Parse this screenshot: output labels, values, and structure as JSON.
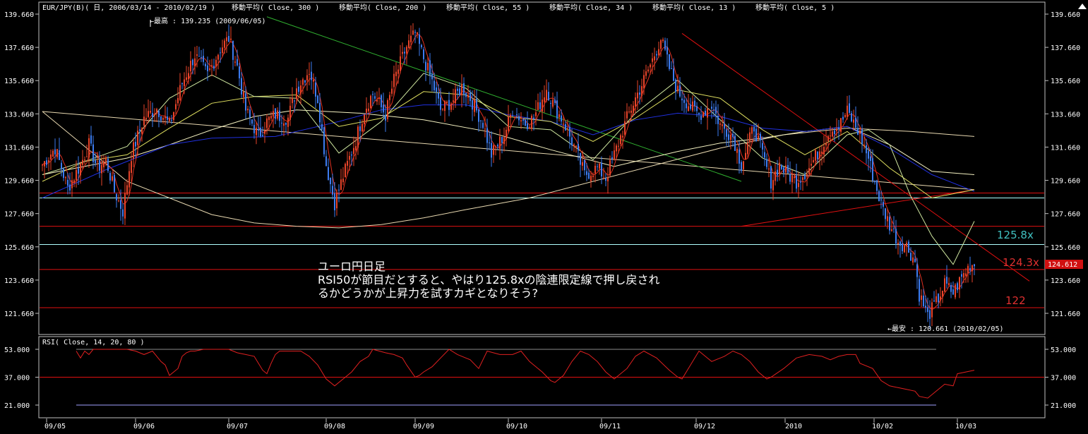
{
  "header": {
    "symbol": "EUR/JPY(B)( 日, 2006/03/14 - 2010/02/19 )",
    "indicators": [
      "移動平均( Close, 300 )",
      "移動平均( Close, 200 )",
      "移動平均( Close, 55 )",
      "移動平均( Close, 34 )",
      "移動平均( Close, 13 )",
      "移動平均( Close, 5 )"
    ],
    "rsi_label": "RSI( Close, 14, 20, 80 )"
  },
  "colors": {
    "background": "#000000",
    "frame": "#bfbfbf",
    "up_candle": "#e8442a",
    "down_candle": "#3d7cf0",
    "ma300": "#e8d8b0",
    "ma200": "#f3f0c0",
    "ma55": "#2030e0",
    "ma34": "#e0e060",
    "ma13": "#d0e8a0",
    "ma5": "#e03020",
    "trend_green": "#30b030",
    "h_red": "#e01010",
    "h_cyan": "#b0ffff",
    "annotation_text": "#ffffff",
    "label_cyan": "#40c0c0",
    "label_red": "#e03030",
    "rsi_line": "#e02020",
    "price_tag_bg": "#d01010"
  },
  "annotations": {
    "high": "←最高 : 139.235 (2009/06/05)",
    "low": "←最安 : 120.661 (2010/02/05)",
    "label_1258": "125.8x",
    "label_1243": "124.3x",
    "label_122": "122",
    "current_price": "124.612",
    "comment_title": "ユーロ円日足",
    "comment_line1": "RSI50が節目だとすると、やはり125.8xの陰連限定線で押し戻され",
    "comment_line2": "るかどうかが上昇力を試すカギとなりそう?"
  },
  "axes": {
    "price_ticks": [
      "139.660",
      "137.660",
      "135.660",
      "133.660",
      "131.660",
      "129.660",
      "127.660",
      "125.660",
      "123.660",
      "121.660"
    ],
    "rsi_ticks": [
      "53.000",
      "37.000",
      "21.000"
    ],
    "x_ticks": [
      "09/05",
      "09/06",
      "09/07",
      "09/08",
      "09/09",
      "09/10",
      "09/11",
      "09/12",
      "2010",
      "10/02",
      "10/03"
    ]
  },
  "chart_data": {
    "type": "candlestick",
    "title": "EUR/JPY(B)( 日, 2006/03/14 - 2010/02/19 )",
    "price_range": [
      120.5,
      140.4
    ],
    "rsi_range": [
      17,
      57
    ],
    "rsi_levels": [
      53,
      37,
      21
    ],
    "horizontal_levels": [
      128.9,
      128.6,
      126.9,
      125.8,
      124.3,
      122.0
    ],
    "close_path": [
      [
        0,
        130.6
      ],
      [
        6,
        131.6
      ],
      [
        12,
        129.2
      ],
      [
        18,
        130.6
      ],
      [
        22,
        131.8
      ],
      [
        26,
        130.4
      ],
      [
        30,
        130.9
      ],
      [
        34,
        129.0
      ],
      [
        38,
        127.8
      ],
      [
        42,
        131.2
      ],
      [
        48,
        133.4
      ],
      [
        54,
        134.0
      ],
      [
        60,
        133.0
      ],
      [
        66,
        135.5
      ],
      [
        72,
        137.2
      ],
      [
        78,
        136.0
      ],
      [
        84,
        137.6
      ],
      [
        88,
        138.2
      ],
      [
        92,
        136.5
      ],
      [
        96,
        133.9
      ],
      [
        102,
        132.3
      ],
      [
        106,
        133.2
      ],
      [
        110,
        133.6
      ],
      [
        116,
        133.4
      ],
      [
        120,
        135.2
      ],
      [
        126,
        136.3
      ],
      [
        130,
        134.6
      ],
      [
        134,
        130.6
      ],
      [
        138,
        128.3
      ],
      [
        142,
        129.9
      ],
      [
        148,
        132.1
      ],
      [
        152,
        133.9
      ],
      [
        156,
        134.9
      ],
      [
        162,
        133.6
      ],
      [
        166,
        135.7
      ],
      [
        172,
        137.7
      ],
      [
        176,
        138.5
      ],
      [
        180,
        137.0
      ],
      [
        184,
        135.6
      ],
      [
        188,
        133.9
      ],
      [
        194,
        134.5
      ],
      [
        198,
        135.3
      ],
      [
        202,
        134.6
      ],
      [
        208,
        133.1
      ],
      [
        212,
        131.2
      ],
      [
        218,
        132.4
      ],
      [
        222,
        133.9
      ],
      [
        228,
        133.1
      ],
      [
        232,
        133.4
      ],
      [
        238,
        135.2
      ],
      [
        242,
        134.0
      ],
      [
        246,
        133.2
      ],
      [
        252,
        131.4
      ],
      [
        256,
        130.0
      ],
      [
        262,
        130.4
      ],
      [
        266,
        129.8
      ],
      [
        270,
        131.2
      ],
      [
        276,
        133.4
      ],
      [
        280,
        134.6
      ],
      [
        284,
        135.7
      ],
      [
        288,
        136.9
      ],
      [
        292,
        138.2
      ],
      [
        296,
        136.4
      ],
      [
        300,
        135.0
      ],
      [
        306,
        134.1
      ],
      [
        310,
        133.6
      ],
      [
        316,
        134.2
      ],
      [
        320,
        133.0
      ],
      [
        326,
        132.3
      ],
      [
        330,
        130.6
      ],
      [
        336,
        132.9
      ],
      [
        340,
        131.2
      ],
      [
        344,
        129.6
      ],
      [
        348,
        130.6
      ],
      [
        352,
        130.0
      ],
      [
        356,
        129.6
      ],
      [
        362,
        130.4
      ],
      [
        366,
        131.3
      ],
      [
        372,
        132.7
      ],
      [
        376,
        132.9
      ],
      [
        380,
        133.8
      ],
      [
        386,
        132.4
      ],
      [
        390,
        131.0
      ],
      [
        392,
        130.0
      ],
      [
        396,
        128.2
      ],
      [
        400,
        127.0
      ],
      [
        404,
        126.0
      ],
      [
        408,
        125.7
      ],
      [
        412,
        124.8
      ],
      [
        414,
        122.8
      ],
      [
        418,
        121.5
      ],
      [
        422,
        122.3
      ],
      [
        426,
        123.4
      ],
      [
        430,
        122.9
      ],
      [
        434,
        123.8
      ],
      [
        438,
        124.6
      ]
    ],
    "ma300": [
      [
        0,
        133.8
      ],
      [
        40,
        129.6
      ],
      [
        80,
        127.6
      ],
      [
        100,
        127.1
      ],
      [
        120,
        126.9
      ],
      [
        140,
        126.8
      ],
      [
        160,
        127.0
      ],
      [
        180,
        127.4
      ],
      [
        200,
        127.9
      ],
      [
        230,
        128.6
      ],
      [
        260,
        129.6
      ],
      [
        290,
        130.6
      ],
      [
        320,
        131.6
      ],
      [
        350,
        132.4
      ],
      [
        380,
        132.8
      ],
      [
        410,
        132.6
      ],
      [
        440,
        132.3
      ]
    ],
    "ma200": [
      [
        0,
        130.0
      ],
      [
        40,
        131.0
      ],
      [
        60,
        131.8
      ],
      [
        80,
        132.7
      ],
      [
        100,
        133.5
      ],
      [
        120,
        133.9
      ],
      [
        150,
        133.7
      ],
      [
        180,
        133.3
      ],
      [
        210,
        132.6
      ],
      [
        240,
        131.5
      ],
      [
        270,
        130.5
      ],
      [
        300,
        131.4
      ],
      [
        320,
        131.9
      ],
      [
        340,
        132.2
      ],
      [
        360,
        132.6
      ],
      [
        380,
        132.9
      ],
      [
        400,
        131.8
      ],
      [
        420,
        130.2
      ],
      [
        440,
        130.0
      ]
    ],
    "ma55": [
      [
        0,
        128.6
      ],
      [
        30,
        130.3
      ],
      [
        60,
        131.8
      ],
      [
        80,
        132.2
      ],
      [
        110,
        132.3
      ],
      [
        140,
        133.2
      ],
      [
        160,
        133.9
      ],
      [
        180,
        134.2
      ],
      [
        200,
        134.2
      ],
      [
        220,
        133.6
      ],
      [
        240,
        133.2
      ],
      [
        260,
        132.4
      ],
      [
        280,
        133.3
      ],
      [
        300,
        133.7
      ],
      [
        320,
        133.5
      ],
      [
        340,
        132.8
      ],
      [
        360,
        132.6
      ],
      [
        380,
        132.9
      ],
      [
        400,
        131.6
      ],
      [
        420,
        130.0
      ],
      [
        440,
        129.0
      ]
    ],
    "ma34": [
      [
        0,
        129.6
      ],
      [
        20,
        130.8
      ],
      [
        40,
        131.2
      ],
      [
        60,
        132.8
      ],
      [
        80,
        134.3
      ],
      [
        100,
        134.7
      ],
      [
        120,
        134.8
      ],
      [
        140,
        132.9
      ],
      [
        160,
        133.4
      ],
      [
        180,
        135.0
      ],
      [
        200,
        134.8
      ],
      [
        220,
        133.5
      ],
      [
        240,
        133.2
      ],
      [
        260,
        132.0
      ],
      [
        280,
        133.4
      ],
      [
        300,
        135.1
      ],
      [
        320,
        134.6
      ],
      [
        340,
        132.7
      ],
      [
        360,
        131.2
      ],
      [
        380,
        132.6
      ],
      [
        400,
        130.4
      ],
      [
        420,
        128.6
      ],
      [
        440,
        129.1
      ]
    ],
    "ma13": [
      [
        0,
        130.0
      ],
      [
        20,
        130.8
      ],
      [
        40,
        131.7
      ],
      [
        60,
        134.6
      ],
      [
        80,
        136.0
      ],
      [
        100,
        134.7
      ],
      [
        120,
        134.6
      ],
      [
        140,
        131.3
      ],
      [
        160,
        133.2
      ],
      [
        180,
        136.1
      ],
      [
        200,
        135.2
      ],
      [
        220,
        132.9
      ],
      [
        240,
        132.7
      ],
      [
        260,
        130.9
      ],
      [
        280,
        133.7
      ],
      [
        300,
        135.7
      ],
      [
        320,
        133.3
      ],
      [
        340,
        131.0
      ],
      [
        360,
        130.0
      ],
      [
        380,
        132.4
      ],
      [
        390,
        132.7
      ],
      [
        400,
        131.8
      ],
      [
        410,
        128.7
      ],
      [
        420,
        126.3
      ],
      [
        430,
        124.6
      ],
      [
        440,
        127.2
      ]
    ],
    "trendlines": [
      {
        "from": [
          0,
          133.8
        ],
        "to": [
          440,
          129.1
        ],
        "color": "ma300"
      },
      {
        "from": [
          106,
          139.5
        ],
        "to": [
          330,
          129.6
        ],
        "color": "trend_green"
      },
      {
        "from": [
          302,
          138.5
        ],
        "to": [
          466,
          123.6
        ],
        "color": "h_red"
      },
      {
        "from": [
          330,
          126.9
        ],
        "to": [
          440,
          129.1
        ],
        "color": "h_red"
      }
    ],
    "rsi": [
      [
        16,
        52
      ],
      [
        18,
        48
      ],
      [
        20,
        52
      ],
      [
        22,
        50
      ],
      [
        24,
        53
      ],
      [
        26,
        53
      ],
      [
        30,
        53
      ],
      [
        32,
        53
      ],
      [
        40,
        53
      ],
      [
        44,
        52
      ],
      [
        48,
        50
      ],
      [
        52,
        52
      ],
      [
        56,
        46
      ],
      [
        58,
        44
      ],
      [
        60,
        38
      ],
      [
        62,
        40
      ],
      [
        64,
        42
      ],
      [
        66,
        49
      ],
      [
        68,
        51
      ],
      [
        70,
        52
      ],
      [
        72,
        52
      ],
      [
        76,
        53
      ],
      [
        82,
        53
      ],
      [
        84,
        53
      ],
      [
        88,
        53
      ],
      [
        92,
        51
      ],
      [
        96,
        50
      ],
      [
        100,
        49
      ],
      [
        104,
        41
      ],
      [
        106,
        39
      ],
      [
        108,
        45
      ],
      [
        110,
        50
      ],
      [
        112,
        52
      ],
      [
        120,
        52
      ],
      [
        122,
        52
      ],
      [
        126,
        49
      ],
      [
        130,
        44
      ],
      [
        134,
        36
      ],
      [
        138,
        32
      ],
      [
        142,
        36
      ],
      [
        146,
        40
      ],
      [
        150,
        46
      ],
      [
        154,
        49
      ],
      [
        156,
        53
      ],
      [
        162,
        51
      ],
      [
        166,
        50
      ],
      [
        170,
        48
      ],
      [
        172,
        44
      ],
      [
        176,
        37
      ],
      [
        178,
        38
      ],
      [
        180,
        40
      ],
      [
        184,
        43
      ],
      [
        188,
        48
      ],
      [
        192,
        53
      ],
      [
        196,
        50
      ],
      [
        202,
        47
      ],
      [
        206,
        42
      ],
      [
        210,
        52
      ],
      [
        216,
        50
      ],
      [
        222,
        50
      ],
      [
        226,
        52
      ],
      [
        230,
        46
      ],
      [
        236,
        40
      ],
      [
        240,
        35
      ],
      [
        242,
        34
      ],
      [
        246,
        38
      ],
      [
        250,
        46
      ],
      [
        254,
        52
      ],
      [
        258,
        50
      ],
      [
        262,
        46
      ],
      [
        266,
        40
      ],
      [
        270,
        36
      ],
      [
        276,
        42
      ],
      [
        280,
        49
      ],
      [
        284,
        52
      ],
      [
        290,
        48
      ],
      [
        296,
        41
      ],
      [
        300,
        37
      ],
      [
        302,
        36
      ],
      [
        306,
        44
      ],
      [
        310,
        52
      ],
      [
        316,
        46
      ],
      [
        322,
        49
      ],
      [
        326,
        52
      ],
      [
        330,
        50
      ],
      [
        334,
        46
      ],
      [
        338,
        40
      ],
      [
        342,
        36
      ],
      [
        344,
        37
      ],
      [
        350,
        42
      ],
      [
        356,
        48
      ],
      [
        362,
        50
      ],
      [
        368,
        49
      ],
      [
        372,
        47
      ],
      [
        376,
        49
      ],
      [
        380,
        50
      ],
      [
        384,
        50
      ],
      [
        386,
        45
      ],
      [
        392,
        42
      ],
      [
        396,
        35
      ],
      [
        400,
        32
      ],
      [
        404,
        31
      ],
      [
        408,
        30
      ],
      [
        412,
        29
      ],
      [
        414,
        26
      ],
      [
        418,
        25
      ],
      [
        422,
        29
      ],
      [
        426,
        33
      ],
      [
        430,
        32
      ],
      [
        432,
        39
      ],
      [
        436,
        40
      ],
      [
        440,
        41
      ]
    ],
    "high": {
      "value": 139.235,
      "date": "2009/06/05"
    },
    "low": {
      "value": 120.661,
      "date": "2010/02/05"
    }
  }
}
